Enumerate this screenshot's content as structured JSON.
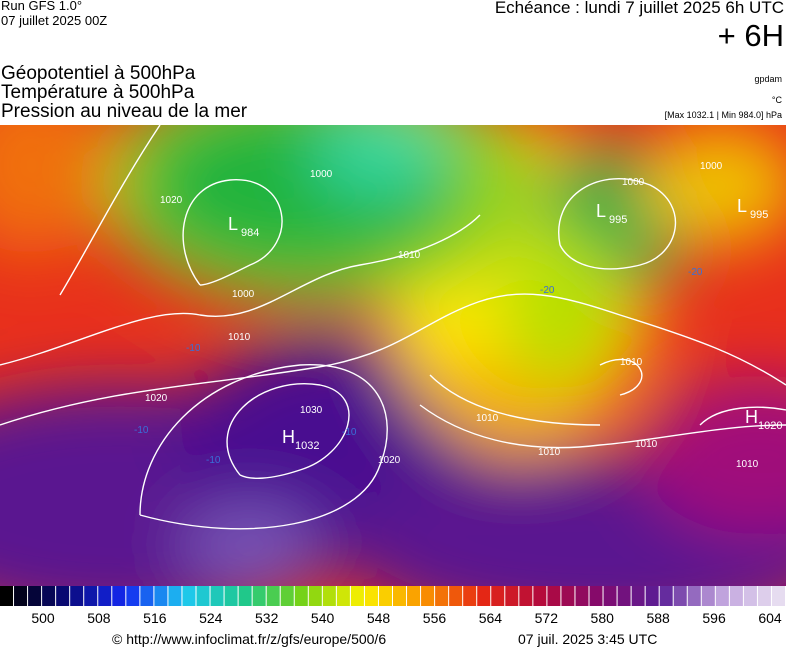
{
  "header": {
    "run": "Run GFS 1.0°",
    "run_date": "07 juillet 2025 00Z",
    "forecast": "Echéance : lundi 7 juillet 2025 6h UTC",
    "lead": "+ 6H"
  },
  "legend": {
    "titles": [
      "Géopotentiel à 500hPa",
      "Température à 500hPa",
      "Pression au niveau de la mer"
    ],
    "units": [
      "gpdam",
      "°C"
    ],
    "range": "[Max 1032.1 | Min 984.0] hPa"
  },
  "centers": [
    {
      "letter": "L",
      "value": 984
    },
    {
      "letter": "L",
      "value": 995
    },
    {
      "letter": "L",
      "value": 995
    },
    {
      "letter": "H",
      "value": 1032
    },
    {
      "letter": "H",
      "value": 1020
    }
  ],
  "isobar_labels": [
    1020,
    1010,
    1000,
    1010,
    1030,
    1020,
    1010,
    1010,
    1010,
    1010,
    1000,
    1000,
    1010,
    1020,
    1000
  ],
  "temperature_labels": [
    -10,
    -10,
    -10,
    -10,
    -20,
    -20
  ],
  "scale": {
    "ticks": [
      500,
      508,
      516,
      524,
      532,
      540,
      548,
      556,
      564,
      572,
      580,
      588,
      596,
      604
    ]
  },
  "footer": {
    "source": "© http://www.infoclimat.fr/z/gfs/europe/500/6",
    "timestamp": "07 juil. 2025  3:45 UTC"
  }
}
